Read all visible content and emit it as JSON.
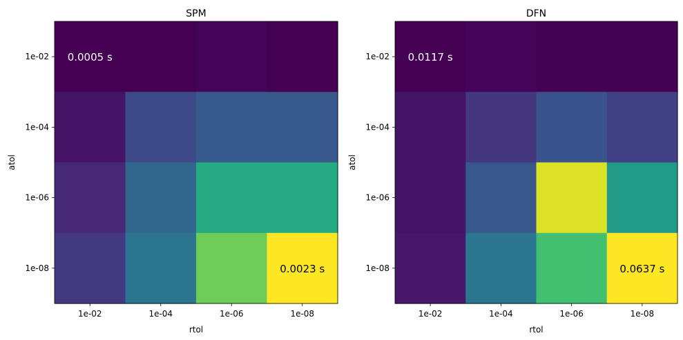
{
  "chart_data": [
    {
      "type": "heatmap",
      "title": "SPM",
      "xlabel": "rtol",
      "ylabel": "atol",
      "x_categories": [
        "1e-02",
        "1e-04",
        "1e-06",
        "1e-08"
      ],
      "y_categories": [
        "1e-02",
        "1e-04",
        "1e-06",
        "1e-08"
      ],
      "colormap": "viridis",
      "values": [
        [
          0.0005,
          0.0005,
          0.00052,
          0.0005
        ],
        [
          0.0006,
          0.0009,
          0.001,
          0.001
        ],
        [
          0.0007,
          0.0011,
          0.0016,
          0.0016
        ],
        [
          0.0008,
          0.0012,
          0.0019,
          0.0023
        ]
      ],
      "vmin": 0.0005,
      "vmax": 0.0023,
      "annotations": [
        {
          "row": 0,
          "col": 0,
          "text": "0.0005 s",
          "color": "#ffffff"
        },
        {
          "row": 3,
          "col": 3,
          "text": "0.0023 s",
          "color": "#000000"
        }
      ]
    },
    {
      "type": "heatmap",
      "title": "DFN",
      "xlabel": "rtol",
      "ylabel": "atol",
      "x_categories": [
        "1e-02",
        "1e-04",
        "1e-06",
        "1e-08"
      ],
      "y_categories": [
        "1e-02",
        "1e-04",
        "1e-06",
        "1e-08"
      ],
      "colormap": "viridis",
      "values": [
        [
          0.0117,
          0.0125,
          0.0118,
          0.0118
        ],
        [
          0.0145,
          0.02,
          0.025,
          0.0215
        ],
        [
          0.0145,
          0.026,
          0.061,
          0.04
        ],
        [
          0.015,
          0.032,
          0.048,
          0.0637
        ]
      ],
      "vmin": 0.0117,
      "vmax": 0.0637,
      "annotations": [
        {
          "row": 0,
          "col": 0,
          "text": "0.0117 s",
          "color": "#ffffff"
        },
        {
          "row": 3,
          "col": 3,
          "text": "0.0637 s",
          "color": "#000000"
        }
      ]
    }
  ]
}
